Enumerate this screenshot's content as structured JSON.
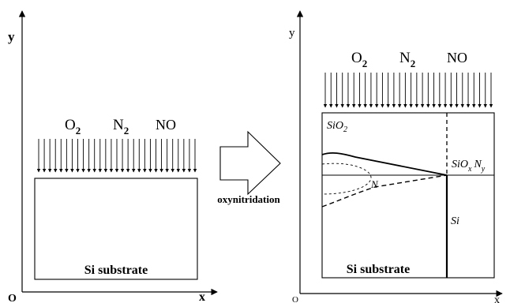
{
  "left_panel": {
    "axis_y_label": "y",
    "axis_x_label": "x",
    "origin_label": "O",
    "gas_labels": [
      "O",
      "N",
      "NO"
    ],
    "gas_subscripts": [
      "2",
      "2",
      ""
    ],
    "substrate_label": "Si substrate"
  },
  "process": {
    "arrow_label": "oxynitridation"
  },
  "right_panel": {
    "axis_y_label": "y",
    "axis_x_label": "x",
    "origin_label": "O",
    "gas_labels": [
      "O",
      "N",
      "NO"
    ],
    "gas_subscripts": [
      "2",
      "2",
      ""
    ],
    "sio2_label": "SiO",
    "sio2_subscript": "2",
    "sioxny_label_si": "SiO",
    "sioxny_sub_x": "x",
    "sioxny_label_n": "N",
    "sioxny_sub_y": "y",
    "n_label": "N",
    "si_label": "Si",
    "substrate_label": "Si substrate"
  }
}
